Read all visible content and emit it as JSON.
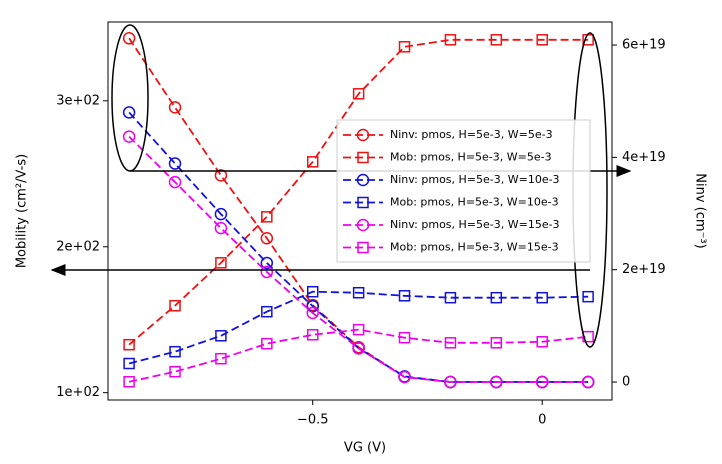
{
  "chart_data": {
    "type": "line",
    "x": [
      -0.9,
      -0.8,
      -0.7,
      -0.6,
      -0.5,
      -0.4,
      -0.3,
      -0.2,
      -0.1,
      0,
      0.1
    ],
    "xlabel": "VG (V)",
    "ylabel": "Mobility (cm²/V-s)",
    "y2label": "Ninv (cm⁻³)",
    "xlim": [
      -0.946,
      0.152
    ],
    "xticks": [
      {
        "value": -0.5,
        "label": "−0.5"
      },
      0
    ],
    "ylim": [
      95,
      354
    ],
    "yticks": [
      {
        "value": 100,
        "label": "1e+02"
      },
      {
        "value": 200,
        "label": "2e+02"
      },
      {
        "value": 300,
        "label": "3e+02"
      }
    ],
    "y2lim": [
      -3.2e+18,
      6.41e+19
    ],
    "y2ticks": [
      0,
      {
        "value": 2e+19,
        "label": "2e+19"
      },
      {
        "value": 4e+19,
        "label": "4e+19"
      },
      {
        "value": 6e+19,
        "label": "6e+19"
      }
    ],
    "series": [
      {
        "name": "Ninv: pmos, H=5e-3, W=5e-3",
        "color": "#ee1111",
        "marker": "circle",
        "axis": "y2",
        "values": [
          6.12e+19,
          4.89e+19,
          3.68e+19,
          2.56e+19,
          1.37e+19,
          6.2e+18,
          9e+17,
          0,
          0,
          0,
          0
        ]
      },
      {
        "name": "Mob: pmos, H=5e-3, W=5e-3",
        "color": "#ee1111",
        "marker": "square",
        "values": [
          132.9,
          159.6,
          189.0,
          220.5,
          258.2,
          304.8,
          337,
          341.8,
          341.8,
          341.8,
          341.8
        ]
      },
      {
        "name": "Ninv: pmos, H=5e-3, W=10e-3",
        "color": "#1111dd",
        "marker": "circle",
        "axis": "y2",
        "values": [
          4.8e+19,
          3.89e+19,
          2.99e+19,
          2.12e+19,
          1.35e+19,
          6e+18,
          1e+18,
          0,
          0,
          0,
          0
        ]
      },
      {
        "name": "Mob: pmos, H=5e-3, W=10e-3",
        "color": "#1111dd",
        "marker": "square",
        "values": [
          120.0,
          128.1,
          139.0,
          155.5,
          169.2,
          168.5,
          166.4,
          165.1,
          165.1,
          165.1,
          165.8
        ]
      },
      {
        "name": "Ninv: pmos, H=5e-3, W=15e-3",
        "color": "#ee00ee",
        "marker": "circle",
        "axis": "y2",
        "values": [
          4.37e+19,
          3.56e+19,
          2.74e+19,
          1.96e+19,
          1.23e+19,
          6e+18,
          9e+17,
          0,
          0,
          0,
          0
        ]
      },
      {
        "name": "Mob: pmos, H=5e-3, W=15e-3",
        "color": "#ee00ee",
        "marker": "square",
        "values": [
          107.5,
          114.4,
          123.3,
          133.6,
          139.7,
          143.2,
          137.7,
          134.2,
          134.2,
          134.9,
          138.4
        ]
      }
    ]
  }
}
